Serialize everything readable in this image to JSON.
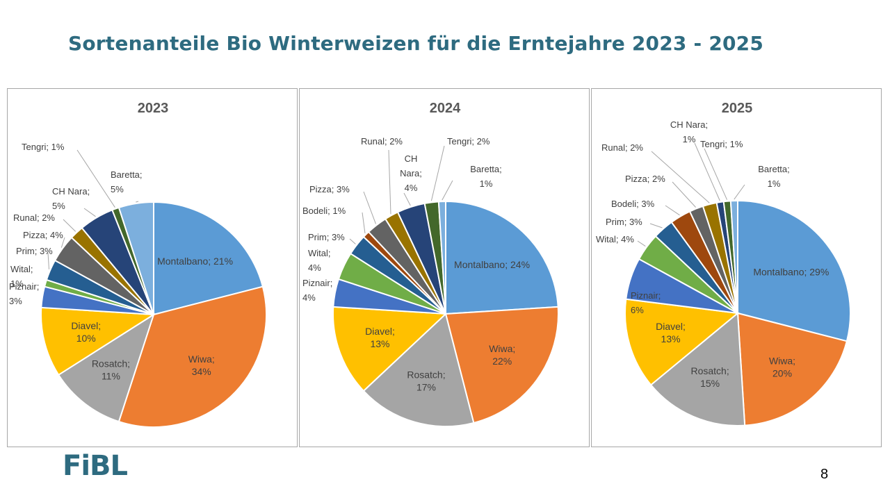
{
  "slide": {
    "title": "Sortenanteile Bio Winterweizen für die Erntejahre 2023 - 2025",
    "logo": "FiBL",
    "page_number": "8"
  },
  "colors": {
    "title": "#2e6b80",
    "Montalbano": "#5b9bd5",
    "Wiwa": "#ed7d31",
    "Rosatch": "#a5a5a5",
    "Diavel": "#ffc000",
    "Piznair": "#4472c4",
    "Wital": "#70ad47",
    "Prim": "#255e91",
    "Bodeli": "#9e480e",
    "Pizza": "#636363",
    "Runal": "#997300",
    "CH Nara": "#264478",
    "Tengri": "#43682b",
    "Baretta": "#7cafdd"
  },
  "chart_data": [
    {
      "type": "pie",
      "title": "2023",
      "slices": [
        {
          "name": "Montalbano",
          "value": 21,
          "label": "Montalbano; 21%"
        },
        {
          "name": "Wiwa",
          "value": 34,
          "label": "Wiwa; 34%"
        },
        {
          "name": "Rosatch",
          "value": 11,
          "label": "Rosatch; 11%"
        },
        {
          "name": "Diavel",
          "value": 10,
          "label": "Diavel; 10%"
        },
        {
          "name": "Piznair",
          "value": 3,
          "label": "Piznair; 3%"
        },
        {
          "name": "Wital",
          "value": 1,
          "label": "Wital; 1%"
        },
        {
          "name": "Prim",
          "value": 3,
          "label": "Prim; 3%"
        },
        {
          "name": "Pizza",
          "value": 4,
          "label": "Pizza; 4%"
        },
        {
          "name": "Runal",
          "value": 2,
          "label": "Runal; 2%"
        },
        {
          "name": "CH Nara",
          "value": 5,
          "label": "CH Nara; 5%"
        },
        {
          "name": "Tengri",
          "value": 1,
          "label": "Tengri; 1%"
        },
        {
          "name": "Baretta",
          "value": 5,
          "label": "Baretta; 5%"
        }
      ]
    },
    {
      "type": "pie",
      "title": "2024",
      "slices": [
        {
          "name": "Montalbano",
          "value": 24,
          "label": "Montalbano; 24%"
        },
        {
          "name": "Wiwa",
          "value": 22,
          "label": "Wiwa; 22%"
        },
        {
          "name": "Rosatch",
          "value": 17,
          "label": "Rosatch; 17%"
        },
        {
          "name": "Diavel",
          "value": 13,
          "label": "Diavel; 13%"
        },
        {
          "name": "Piznair",
          "value": 4,
          "label": "Piznair; 4%"
        },
        {
          "name": "Wital",
          "value": 4,
          "label": "Wital; 4%"
        },
        {
          "name": "Prim",
          "value": 3,
          "label": "Prim; 3%"
        },
        {
          "name": "Bodeli",
          "value": 1,
          "label": "Bodeli; 1%"
        },
        {
          "name": "Pizza",
          "value": 3,
          "label": "Pizza; 3%"
        },
        {
          "name": "Runal",
          "value": 2,
          "label": "Runal; 2%"
        },
        {
          "name": "CH Nara",
          "value": 4,
          "label": "CH Nara; 4%"
        },
        {
          "name": "Tengri",
          "value": 2,
          "label": "Tengri; 2%"
        },
        {
          "name": "Baretta",
          "value": 1,
          "label": "Baretta; 1%"
        }
      ]
    },
    {
      "type": "pie",
      "title": "2025",
      "slices": [
        {
          "name": "Montalbano",
          "value": 29,
          "label": "Montalbano; 29%"
        },
        {
          "name": "Wiwa",
          "value": 20,
          "label": "Wiwa; 20%"
        },
        {
          "name": "Rosatch",
          "value": 15,
          "label": "Rosatch; 15%"
        },
        {
          "name": "Diavel",
          "value": 13,
          "label": "Diavel; 13%"
        },
        {
          "name": "Piznair",
          "value": 6,
          "label": "Piznair; 6%"
        },
        {
          "name": "Wital",
          "value": 4,
          "label": "Wital; 4%"
        },
        {
          "name": "Prim",
          "value": 3,
          "label": "Prim; 3%"
        },
        {
          "name": "Bodeli",
          "value": 3,
          "label": "Bodeli; 3%"
        },
        {
          "name": "Pizza",
          "value": 2,
          "label": "Pizza; 2%"
        },
        {
          "name": "Runal",
          "value": 2,
          "label": "Runal; 2%"
        },
        {
          "name": "CH Nara",
          "value": 1,
          "label": "CH Nara; 1%"
        },
        {
          "name": "Tengri",
          "value": 1,
          "label": "Tengri; 1%"
        },
        {
          "name": "Baretta",
          "value": 1,
          "label": "Baretta; 1%"
        }
      ]
    }
  ]
}
